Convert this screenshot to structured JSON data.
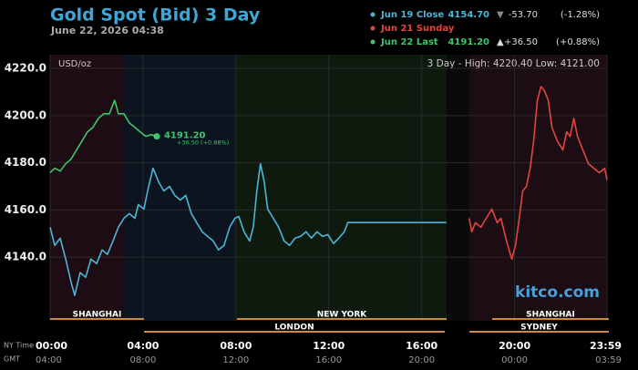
{
  "chart_data": {
    "type": "line",
    "title": "Gold Spot (Bid) 3 Day",
    "subtitle": "June 22, 2026 04:38",
    "unit_label": "USD/oz",
    "range_note": "3 Day - High: 4220.40  Low: 4121.00",
    "brand": "kitco.com",
    "end_label": "4191.20",
    "end_change": "+36.50 (+0.88%)",
    "x_row_label": "NY Time",
    "x2_row_label": "GMT",
    "sessions": [
      "SHANGHAI",
      "LONDON",
      "NEW YORK",
      "SHANGHAI",
      "SYDNEY"
    ],
    "xlim": [
      0,
      23.98
    ],
    "ylim": [
      4117.7,
      4225.8
    ],
    "xticks": [
      {
        "value": 0,
        "label": "00:00"
      },
      {
        "value": 4,
        "label": "04:00"
      },
      {
        "value": 8,
        "label": "08:00"
      },
      {
        "value": 12,
        "label": "12:00"
      },
      {
        "value": 16,
        "label": "16:00"
      },
      {
        "value": 20,
        "label": "20:00"
      },
      {
        "value": 23.98,
        "label": "23:59"
      }
    ],
    "x2_tick_labels": [
      "04:00",
      "08:00",
      "12:00",
      "16:00",
      "20:00",
      "00:00",
      "03:59"
    ],
    "yticks": [
      {
        "value": 4140,
        "label": "4140.0"
      },
      {
        "value": 4160,
        "label": "4160.0"
      },
      {
        "value": 4180,
        "label": "4180.0"
      },
      {
        "value": 4200,
        "label": "4200.0"
      },
      {
        "value": 4220,
        "label": "4220.0"
      }
    ],
    "grid": true,
    "series": [
      {
        "name": "Jun 19 Close",
        "color": "#4cb6d6",
        "info": [
          "4154.70",
          "▼",
          "-53.70",
          "(-1.28%)"
        ],
        "x": [
          0,
          0.2,
          0.43,
          0.67,
          0.9,
          1.06,
          1.29,
          1.53,
          1.76,
          2.0,
          2.24,
          2.47,
          2.71,
          2.94,
          3.18,
          3.41,
          3.65,
          3.8,
          4.04,
          4.2,
          4.43,
          4.67,
          4.9,
          5.14,
          5.37,
          5.61,
          5.84,
          6.08,
          6.31,
          6.55,
          6.78,
          7.02,
          7.25,
          7.49,
          7.73,
          7.96,
          8.12,
          8.35,
          8.59,
          8.75,
          8.9,
          9.06,
          9.22,
          9.37,
          9.61,
          9.84,
          10.08,
          10.31,
          10.55,
          10.78,
          11.02,
          11.25,
          11.49,
          11.73,
          11.96,
          12.2,
          12.43,
          12.67,
          12.82,
          12.98,
          17.06
        ],
        "values": [
          4152.7,
          4145.0,
          4148.1,
          4139.2,
          4129.6,
          4123.8,
          4133.5,
          4131.5,
          4139.2,
          4137.3,
          4143.1,
          4141.2,
          4146.9,
          4152.7,
          4156.5,
          4158.5,
          4156.5,
          4162.3,
          4160.4,
          4168.1,
          4177.7,
          4171.9,
          4168.1,
          4170.0,
          4166.2,
          4164.2,
          4166.2,
          4158.5,
          4154.6,
          4150.8,
          4148.8,
          4146.9,
          4143.1,
          4145.0,
          4152.7,
          4156.5,
          4157.3,
          4150.8,
          4146.9,
          4152.7,
          4168.1,
          4179.6,
          4171.9,
          4160.4,
          4156.5,
          4152.7,
          4146.9,
          4145.0,
          4148.1,
          4148.8,
          4150.8,
          4148.1,
          4150.8,
          4148.8,
          4149.6,
          4145.8,
          4148.1,
          4150.8,
          4154.7,
          4154.7,
          4154.7
        ]
      },
      {
        "name": "Jun 21 Sunday",
        "color": "#e0473c",
        "info": [],
        "x": [
          18.04,
          18.16,
          18.31,
          18.55,
          18.78,
          19.02,
          19.25,
          19.41,
          19.65,
          19.88,
          20.04,
          20.2,
          20.35,
          20.51,
          20.67,
          20.82,
          20.98,
          21.14,
          21.29,
          21.45,
          21.61,
          21.84,
          22.08,
          22.24,
          22.39,
          22.55,
          22.71,
          22.94,
          23.18,
          23.41,
          23.65,
          23.88,
          23.98
        ],
        "values": [
          4156.5,
          4150.8,
          4154.6,
          4152.7,
          4156.5,
          4160.4,
          4154.6,
          4156.5,
          4146.9,
          4139.2,
          4145.0,
          4156.5,
          4168.1,
          4170.0,
          4177.7,
          4189.2,
          4206.5,
          4212.3,
          4210.4,
          4206.5,
          4195.0,
          4189.2,
          4185.4,
          4193.1,
          4191.2,
          4198.8,
          4191.2,
          4185.4,
          4179.6,
          4177.7,
          4175.8,
          4177.7,
          4172.7
        ]
      },
      {
        "name": "Jun 22 Last",
        "color": "#3fc56e",
        "info": [
          "4191.20",
          "▲",
          "+36.50",
          "(+0.88%)"
        ],
        "x": [
          0,
          0.2,
          0.43,
          0.67,
          0.9,
          1.14,
          1.37,
          1.61,
          1.84,
          2.08,
          2.31,
          2.55,
          2.78,
          2.94,
          3.18,
          3.41,
          3.65,
          3.88,
          4.12,
          4.35,
          4.59
        ],
        "values": [
          4175.8,
          4177.7,
          4176.5,
          4179.6,
          4181.5,
          4185.4,
          4189.2,
          4193.1,
          4195.0,
          4198.8,
          4200.8,
          4200.8,
          4206.5,
          4200.8,
          4200.8,
          4196.9,
          4195.0,
          4193.1,
          4191.2,
          4191.9,
          4191.2
        ]
      }
    ]
  }
}
